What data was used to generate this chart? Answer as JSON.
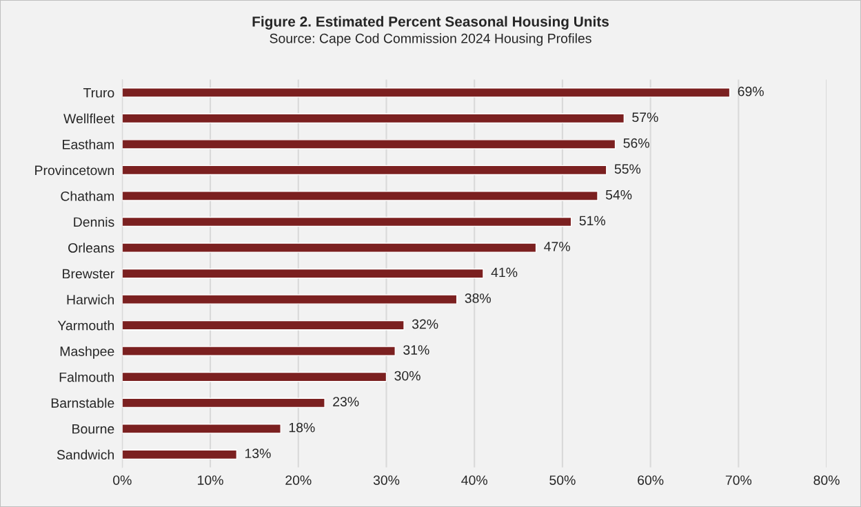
{
  "chart_data": {
    "type": "bar",
    "orientation": "horizontal",
    "title": "Figure 2. Estimated Percent Seasonal Housing Units",
    "subtitle": "Source: Cape Cod Commission 2024 Housing Profiles",
    "categories": [
      "Truro",
      "Wellfleet",
      "Eastham",
      "Provincetown",
      "Chatham",
      "Dennis",
      "Orleans",
      "Brewster",
      "Harwich",
      "Yarmouth",
      "Mashpee",
      "Falmouth",
      "Barnstable",
      "Bourne",
      "Sandwich"
    ],
    "values": [
      69,
      57,
      56,
      55,
      54,
      51,
      47,
      41,
      38,
      32,
      31,
      30,
      23,
      18,
      13
    ],
    "value_labels": [
      "69%",
      "57%",
      "56%",
      "55%",
      "54%",
      "51%",
      "47%",
      "41%",
      "38%",
      "32%",
      "31%",
      "30%",
      "23%",
      "18%",
      "13%"
    ],
    "color": "#7b2020",
    "xlim": [
      0,
      80
    ],
    "xticks": [
      {
        "value": 0,
        "label": "0%"
      },
      {
        "value": 10,
        "label": "10%"
      },
      {
        "value": 20,
        "label": "20%"
      },
      {
        "value": 30,
        "label": "30%"
      },
      {
        "value": 40,
        "label": "40%"
      },
      {
        "value": 50,
        "label": "50%"
      },
      {
        "value": 60,
        "label": "60%"
      },
      {
        "value": 70,
        "label": "70%"
      },
      {
        "value": 80,
        "label": "80%"
      }
    ],
    "grid": "x"
  }
}
